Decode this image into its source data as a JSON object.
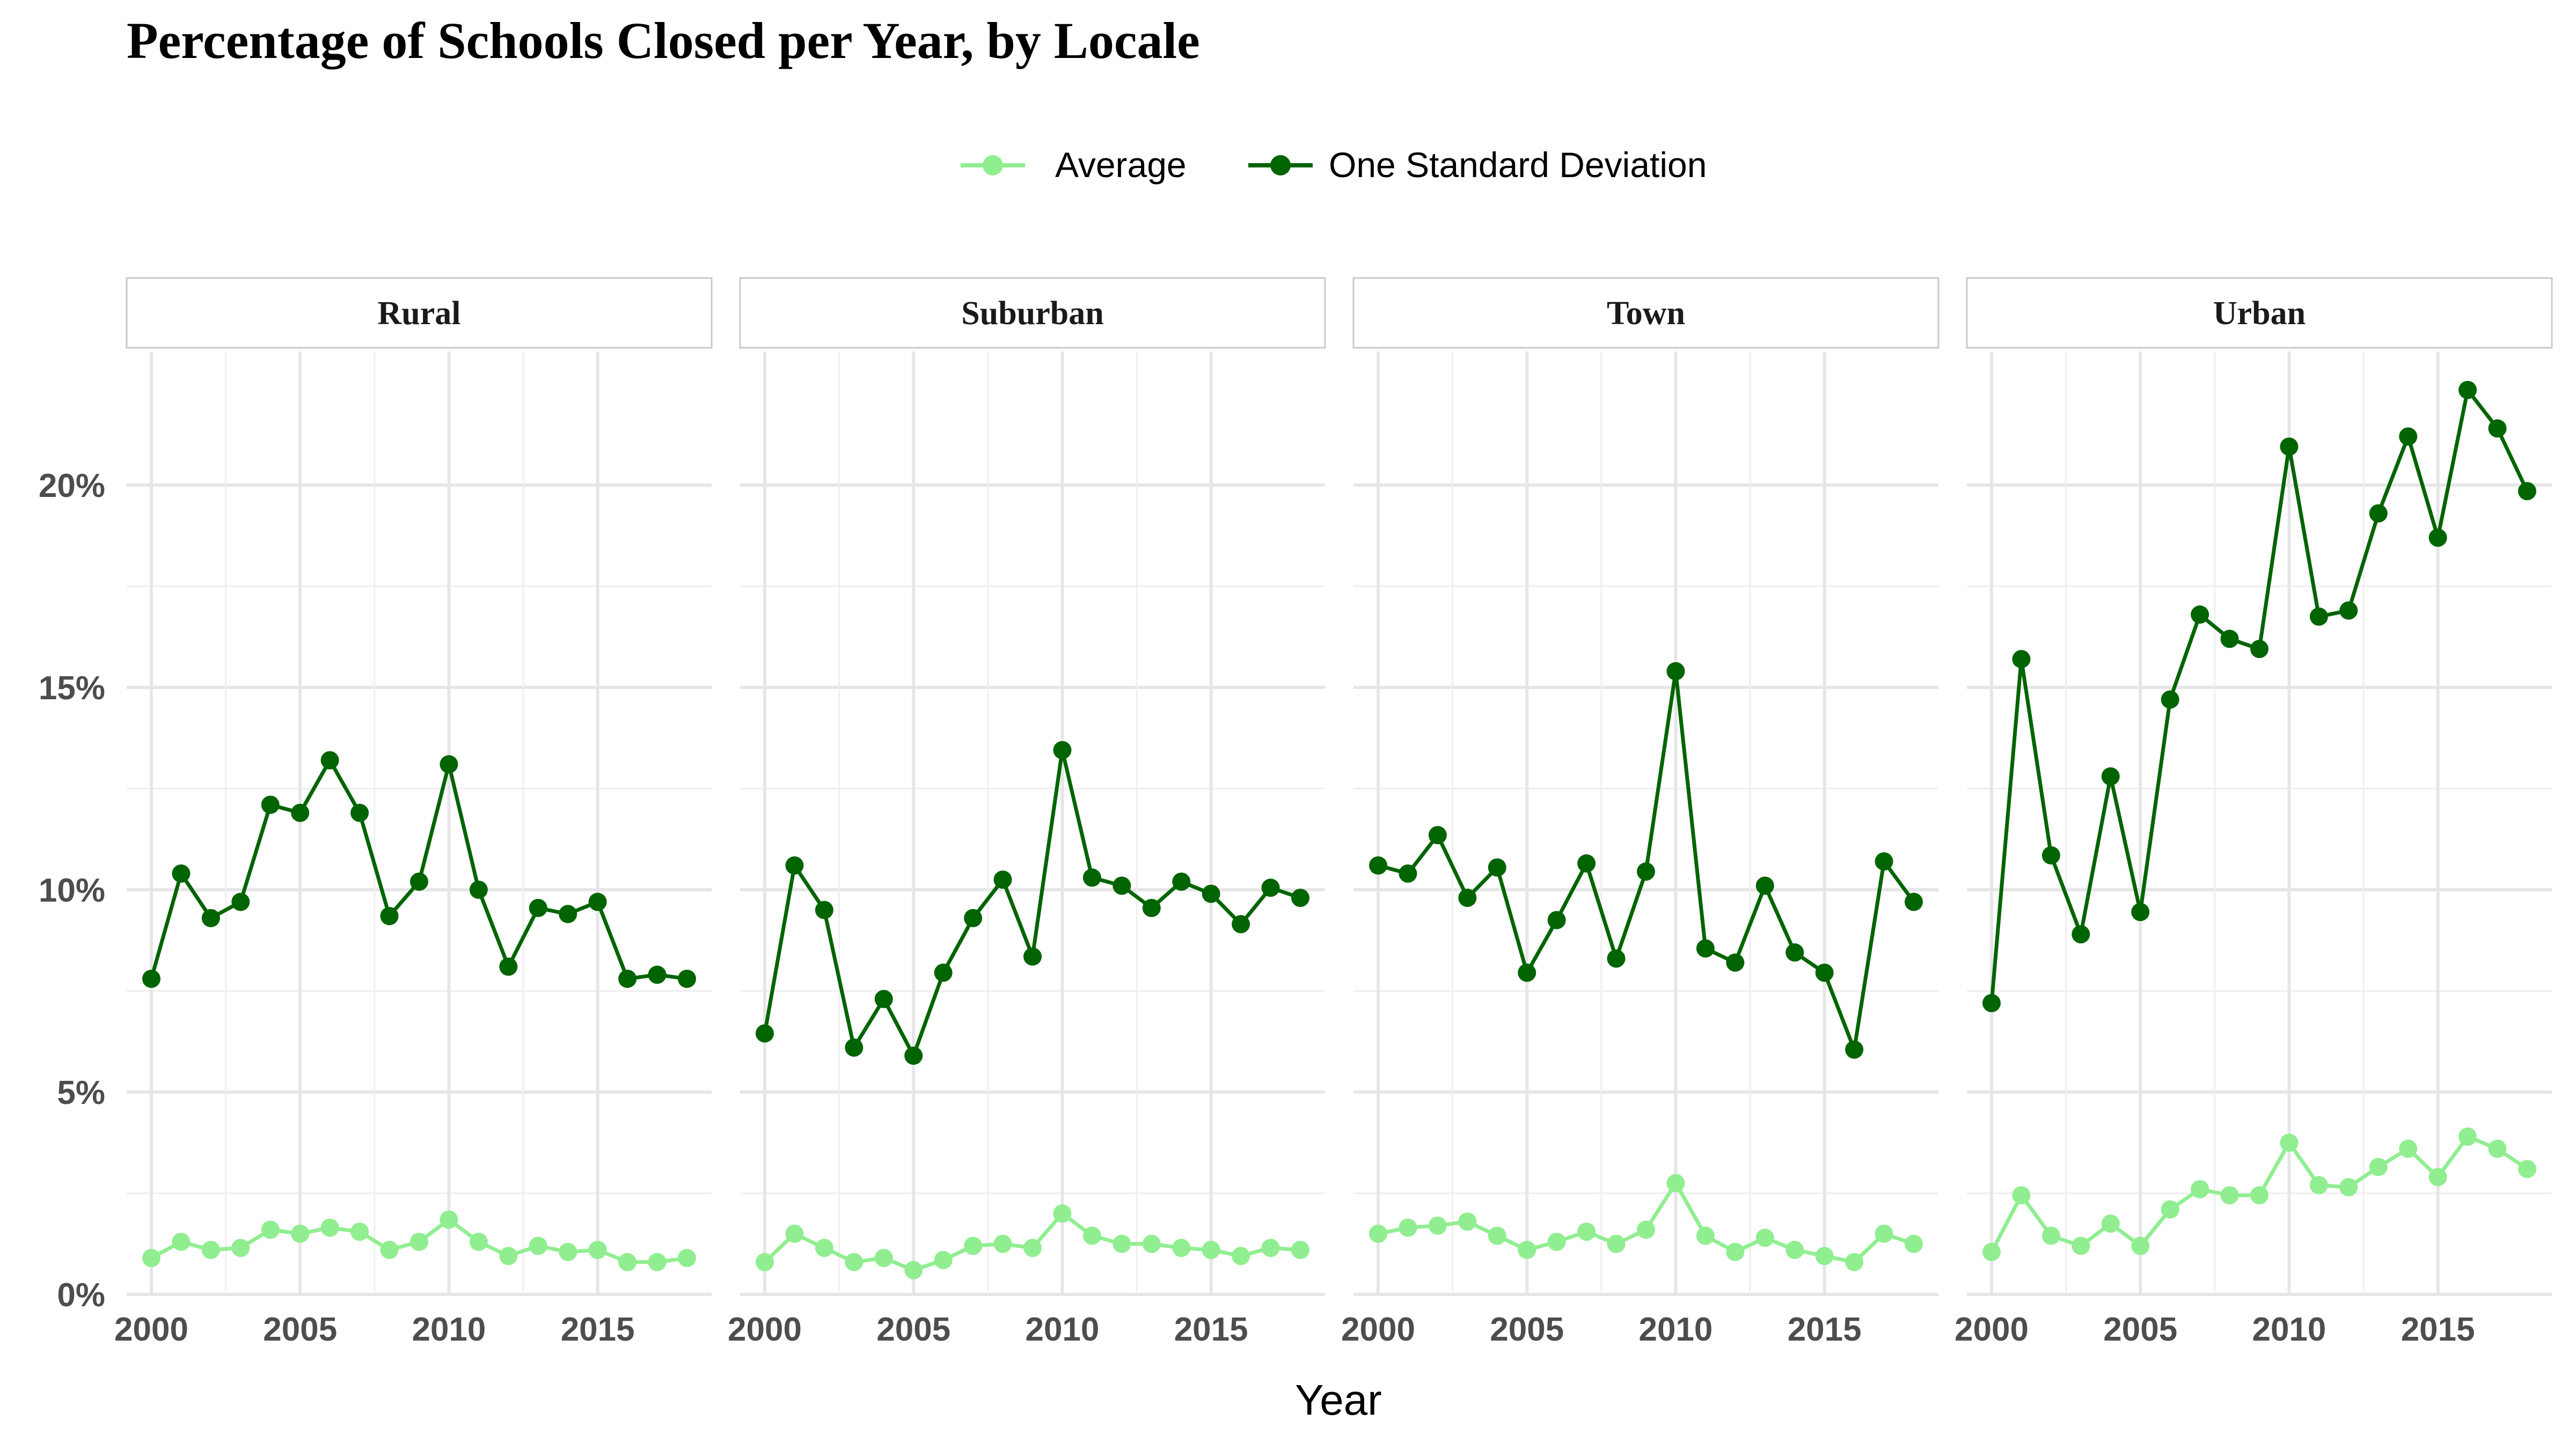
{
  "chart_data": {
    "type": "line",
    "title": "Percentage of Schools Closed per Year, by Locale",
    "xlabel": "Year",
    "ylabel": "",
    "xlim": [
      2000,
      2018
    ],
    "ylim": [
      0,
      23.3
    ],
    "x_ticks": [
      2000,
      2005,
      2010,
      2015
    ],
    "y_ticks": [
      0,
      5,
      10,
      15,
      20
    ],
    "y_tick_labels": [
      "0%",
      "5%",
      "10%",
      "15%",
      "20%"
    ],
    "grid": true,
    "legend_position": "top",
    "series_colors": {
      "Average": "#90EE90",
      "One Standard Deviation": "#006400"
    },
    "legend": [
      "Average",
      "One Standard Deviation"
    ],
    "x": [
      2000,
      2001,
      2002,
      2003,
      2004,
      2005,
      2006,
      2007,
      2008,
      2009,
      2010,
      2011,
      2012,
      2013,
      2014,
      2015,
      2016,
      2017,
      2018
    ],
    "panels": [
      {
        "label": "Rural",
        "series": [
          {
            "name": "Average",
            "values": [
              0.9,
              1.3,
              1.1,
              1.15,
              1.6,
              1.5,
              1.65,
              1.55,
              1.1,
              1.3,
              1.85,
              1.3,
              0.95,
              1.2,
              1.05,
              1.1,
              0.8,
              0.8,
              0.9
            ]
          },
          {
            "name": "One Standard Deviation",
            "values": [
              7.8,
              10.4,
              9.3,
              9.7,
              12.1,
              11.9,
              13.2,
              11.9,
              9.35,
              10.2,
              13.1,
              10.0,
              8.1,
              9.55,
              9.4,
              9.7,
              7.8,
              7.9,
              7.8
            ]
          }
        ]
      },
      {
        "label": "Suburban",
        "series": [
          {
            "name": "Average",
            "values": [
              0.8,
              1.5,
              1.15,
              0.8,
              0.9,
              0.6,
              0.85,
              1.2,
              1.25,
              1.15,
              2.0,
              1.45,
              1.25,
              1.25,
              1.15,
              1.1,
              0.95,
              1.15,
              1.1
            ]
          },
          {
            "name": "One Standard Deviation",
            "values": [
              6.45,
              10.6,
              9.5,
              6.1,
              7.3,
              5.9,
              7.95,
              9.3,
              10.25,
              8.35,
              13.45,
              10.3,
              10.1,
              9.55,
              10.2,
              9.9,
              9.15,
              10.05,
              9.8
            ]
          }
        ]
      },
      {
        "label": "Town",
        "series": [
          {
            "name": "Average",
            "values": [
              1.5,
              1.65,
              1.7,
              1.8,
              1.45,
              1.1,
              1.3,
              1.55,
              1.25,
              1.6,
              2.75,
              1.45,
              1.05,
              1.4,
              1.1,
              0.95,
              0.8,
              1.5,
              1.25
            ]
          },
          {
            "name": "One Standard Deviation",
            "values": [
              10.6,
              10.4,
              11.35,
              9.8,
              10.55,
              7.95,
              9.25,
              10.65,
              8.3,
              10.45,
              15.4,
              8.55,
              8.2,
              10.1,
              8.45,
              7.95,
              6.05,
              10.7,
              9.7
            ]
          }
        ]
      },
      {
        "label": "Urban",
        "series": [
          {
            "name": "Average",
            "values": [
              1.05,
              2.45,
              1.45,
              1.2,
              1.75,
              1.2,
              2.1,
              2.6,
              2.45,
              2.45,
              3.75,
              2.7,
              2.65,
              3.15,
              3.6,
              2.9,
              3.9,
              3.6,
              3.1
            ]
          },
          {
            "name": "One Standard Deviation",
            "values": [
              7.2,
              15.7,
              10.85,
              8.9,
              12.8,
              9.45,
              14.7,
              16.8,
              16.2,
              15.95,
              20.95,
              16.75,
              16.9,
              19.3,
              21.2,
              18.7,
              22.35,
              21.4,
              19.85
            ]
          }
        ]
      }
    ]
  }
}
